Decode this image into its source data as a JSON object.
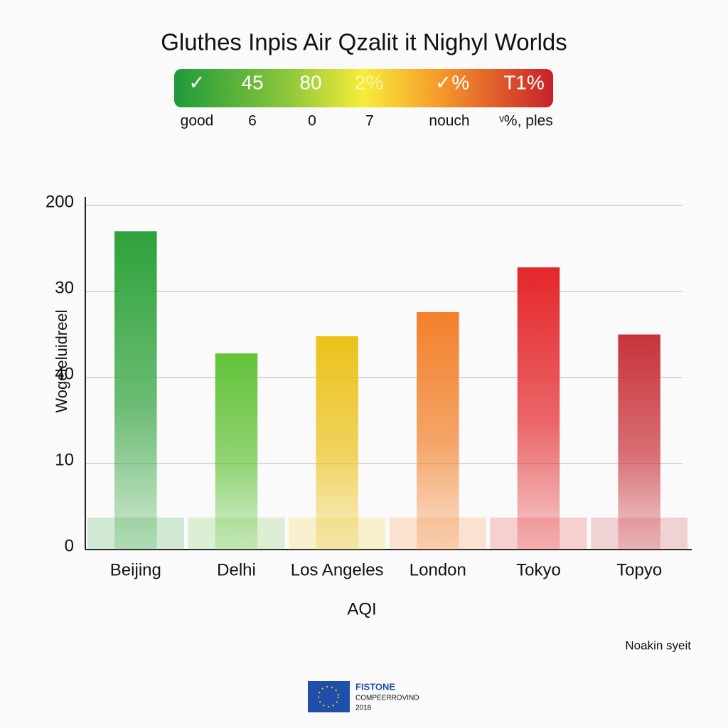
{
  "chart_data": {
    "type": "bar",
    "title": "Gluthes Inpis Air Qzalit it Nighyl Worlds",
    "scale_labels": [
      "✓",
      "45",
      "80",
      "2%",
      "✓%",
      "T1%"
    ],
    "scale_sublabels": [
      "good",
      "6",
      "0",
      "7",
      "nouch",
      "ᵛ%, ples"
    ],
    "y_label": "Wogeleluidreel",
    "x_label": "AQI",
    "note": "Noakin syeit",
    "logo": {
      "name": "FISTONE",
      "line": "COMPEERROVIND",
      "year": "2018"
    },
    "categories": [
      "Beijing",
      "Delhi",
      "Los Angeles",
      "London",
      "Tokyo",
      "Topyo"
    ],
    "values": [
      185,
      114,
      124,
      138,
      164,
      125
    ],
    "colors": [
      "#2ea23a",
      "#63c33a",
      "#ecc21a",
      "#f3802a",
      "#e4262a",
      "#c8323a"
    ],
    "ylim": [
      0,
      200
    ],
    "yticks": [
      0,
      {
        "value": 50,
        "label": "10"
      },
      {
        "value": 100,
        "label": "40"
      },
      {
        "value": 150,
        "label": "30"
      },
      200
    ],
    "grid": true
  }
}
